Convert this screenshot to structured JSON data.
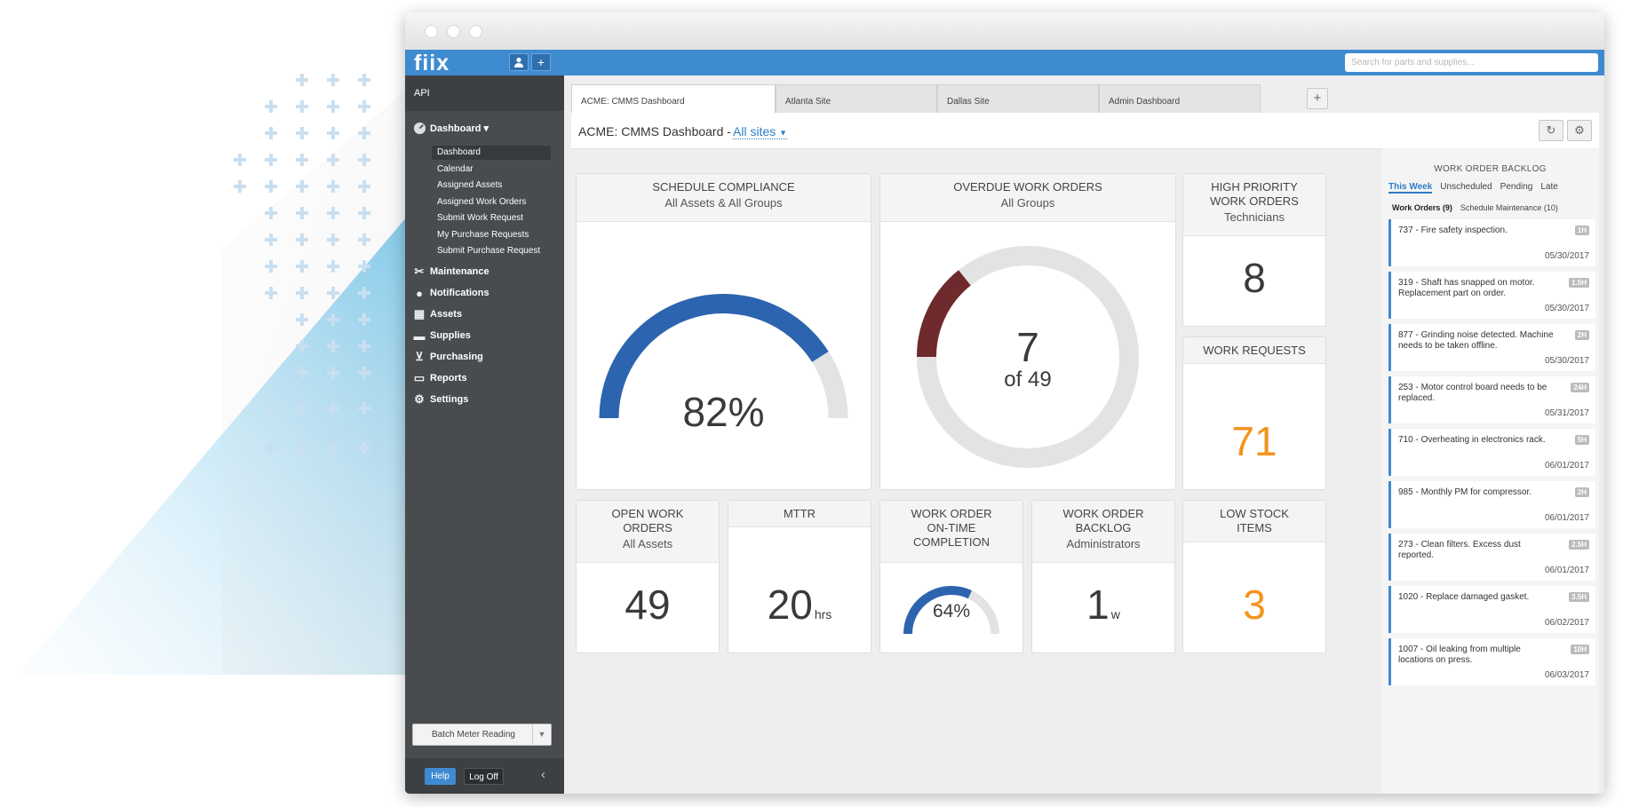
{
  "colors": {
    "brand_blue": "#3f8bd0",
    "sidebar_bg": "#484c4f",
    "gauge_blue": "#2d64b0",
    "overdue_red": "#6e2a2c",
    "accent_orange": "#f5931e",
    "track_gray": "#e3e3e3"
  },
  "topbar": {
    "logo": "fiix",
    "user_icon": "person-icon",
    "add_icon": "plus-icon",
    "search_placeholder": "Search for parts and supplies..."
  },
  "sidebar": {
    "header": "API",
    "dashboard_label": "Dashboard ▾",
    "subitems": [
      "Dashboard",
      "Calendar",
      "Assigned Assets",
      "Assigned Work Orders",
      "Submit Work Request",
      "My Purchase Requests",
      "Submit Purchase Request"
    ],
    "items": [
      {
        "label": "Maintenance",
        "icon": "wrench-icon"
      },
      {
        "label": "Notifications",
        "icon": "speech-bubble-icon"
      },
      {
        "label": "Assets",
        "icon": "boxes-icon"
      },
      {
        "label": "Supplies",
        "icon": "truck-icon"
      },
      {
        "label": "Purchasing",
        "icon": "cart-icon"
      },
      {
        "label": "Reports",
        "icon": "chart-icon"
      },
      {
        "label": "Settings",
        "icon": "gear-icon"
      }
    ],
    "batch_label": "Batch Meter Reading",
    "help_label": "Help",
    "logoff_label": "Log Off"
  },
  "tabs": [
    "ACME: CMMS Dashboard",
    "Atlanta Site",
    "Dallas Site",
    "Admin Dashboard"
  ],
  "page": {
    "title": "ACME: CMMS Dashboard -",
    "site_filter": "All sites"
  },
  "widgets": {
    "schedule_compliance": {
      "title": "SCHEDULE COMPLIANCE",
      "subtitle": "All Assets & All Groups",
      "value": "82%",
      "fraction": 0.82
    },
    "overdue": {
      "title": "OVERDUE WORK ORDERS",
      "subtitle": "All Groups",
      "value": "7",
      "of_text": "of 49",
      "count": 7,
      "total": 49
    },
    "high_priority": {
      "title_line1": "HIGH PRIORITY",
      "title_line2": "WORK ORDERS",
      "subtitle": "Technicians",
      "value": "8"
    },
    "work_requests": {
      "title": "WORK REQUESTS",
      "value": "71"
    },
    "open_wo": {
      "title_line1": "OPEN WORK",
      "title_line2": "ORDERS",
      "subtitle": "All Assets",
      "value": "49"
    },
    "mttr": {
      "title": "MTTR",
      "value": "20",
      "unit": "hrs"
    },
    "on_time": {
      "title_line1": "WORK ORDER",
      "title_line2": "ON-TIME",
      "title_line3": "COMPLETION",
      "value": "64%",
      "fraction": 0.64
    },
    "backlog_w": {
      "title_line1": "WORK ORDER",
      "title_line2": "BACKLOG",
      "subtitle": "Administrators",
      "value": "1",
      "unit": "w"
    },
    "low_stock": {
      "title_line1": "LOW STOCK",
      "title_line2": "ITEMS",
      "value": "3"
    }
  },
  "backlog": {
    "title": "WORK ORDER BACKLOG",
    "tabs": [
      "This Week",
      "Unscheduled",
      "Pending",
      "Late"
    ],
    "subtabs": [
      "Work Orders (9)",
      "Schedule Maintenance (10)"
    ],
    "items": [
      {
        "text": "737 - Fire safety inspection.",
        "badge": "1H",
        "date": "05/30/2017"
      },
      {
        "text": "319 - Shaft has snapped on motor. Replacement part on order.",
        "badge": "1.5H",
        "date": "05/30/2017"
      },
      {
        "text": "877 - Grinding noise detected. Machine needs to be taken offline.",
        "badge": "2H",
        "date": "05/30/2017"
      },
      {
        "text": "253 - Motor control board needs to be replaced.",
        "badge": "24H",
        "date": "05/31/2017"
      },
      {
        "text": "710 - Overheating in electronics rack.",
        "badge": "5H",
        "date": "06/01/2017"
      },
      {
        "text": "985 - Monthly PM for compressor.",
        "badge": "2H",
        "date": "06/01/2017"
      },
      {
        "text": "273 - Clean filters. Excess dust reported.",
        "badge": "2.5H",
        "date": "06/01/2017"
      },
      {
        "text": "1020 - Replace damaged gasket.",
        "badge": "3.5H",
        "date": "06/02/2017"
      },
      {
        "text": "1007 - Oil leaking from multiple locations on press.",
        "badge": "10H",
        "date": "06/03/2017"
      }
    ]
  }
}
